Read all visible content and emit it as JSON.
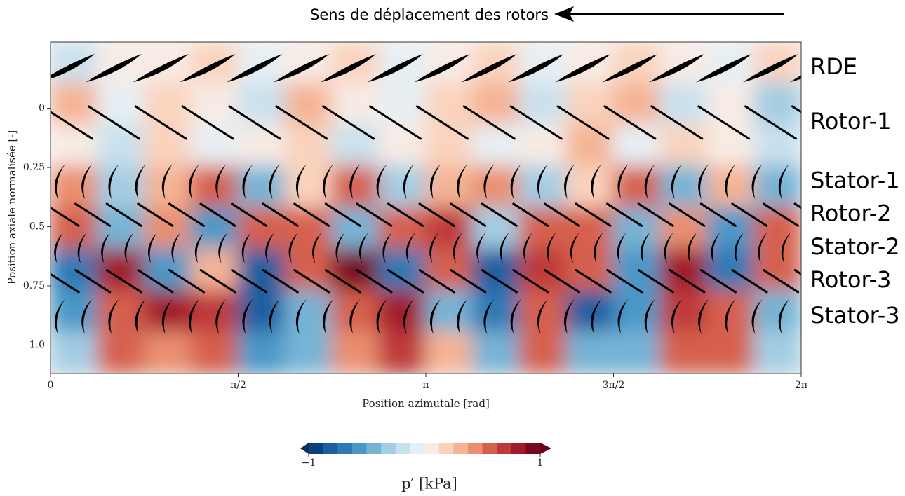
{
  "chart_data": {
    "type": "contour",
    "annotation": "Sens de déplacement des rotors",
    "xlabel": "Position azimutale [rad]",
    "ylabel": "Position axiale normalisée [-]",
    "xlim": [
      0,
      6.2832
    ],
    "xticks": [
      0,
      {
        "value": 1.5708,
        "label": "π/2"
      },
      {
        "value": 3.1416,
        "label": "π"
      },
      {
        "value": 4.7124,
        "label": "3π/2"
      },
      {
        "value": 6.2832,
        "label": "2π"
      }
    ],
    "ylim": [
      -0.28,
      1.12
    ],
    "y_inverted": true,
    "yticks": [
      0,
      0.25,
      0.5,
      0.75,
      {
        "value": 1,
        "label": "1.0"
      }
    ],
    "rows": [
      {
        "name": "RDE",
        "position": -0.17,
        "blades": 16,
        "blade": "airfoil"
      },
      {
        "name": "Rotor-1",
        "position": 0.06,
        "blades": 16,
        "blade": "plate"
      },
      {
        "name": "Stator-1",
        "position": 0.31,
        "blades": 28,
        "blade": "arc"
      },
      {
        "name": "Rotor-2",
        "position": 0.45,
        "blades": 24,
        "blade": "plate"
      },
      {
        "name": "Stator-2",
        "position": 0.59,
        "blades": 32,
        "blade": "arc"
      },
      {
        "name": "Rotor-3",
        "position": 0.73,
        "blades": 24,
        "blade": "plate"
      },
      {
        "name": "Stator-3",
        "position": 0.88,
        "blades": 28,
        "blade": "arc"
      }
    ],
    "field": {
      "values": [
        [
          -0.2,
          0.1,
          0,
          0.2,
          -0.1,
          0.1,
          0.2,
          -0.1,
          0,
          0.2,
          -0.1,
          0.1,
          0.2,
          0,
          -0.1,
          0.2
        ],
        [
          0.3,
          -0.1,
          0.2,
          0.1,
          -0.2,
          0.3,
          0.1,
          -0.1,
          0.2,
          0.3,
          -0.2,
          0.2,
          0.3,
          -0.2,
          0.1,
          -0.3
        ],
        [
          0.1,
          -0.2,
          0.2,
          -0.1,
          0.1,
          0.2,
          -0.2,
          0.1,
          0.2,
          -0.1,
          0.1,
          0.3,
          -0.1,
          0.2,
          0.1,
          -0.2
        ],
        [
          0.4,
          -0.3,
          0.3,
          0.5,
          -0.4,
          0.2,
          0.5,
          -0.3,
          0.3,
          0.4,
          -0.3,
          0.2,
          0.5,
          -0.4,
          0.3,
          -0.5
        ],
        [
          0.6,
          -0.5,
          0.4,
          -0.6,
          0.5,
          0.6,
          -0.4,
          0.5,
          0.7,
          -0.3,
          0.6,
          0.5,
          -0.5,
          0.4,
          -0.6,
          0.5
        ],
        [
          -0.7,
          0.8,
          -0.6,
          0.3,
          -0.8,
          0.6,
          0.9,
          -0.7,
          0.6,
          -0.8,
          0.7,
          0.5,
          -0.6,
          0.8,
          -0.7,
          0.6
        ],
        [
          -0.6,
          0.5,
          0.8,
          0.7,
          -0.8,
          -0.5,
          0.6,
          0.8,
          -0.4,
          -0.7,
          0.5,
          -0.8,
          -0.6,
          0.7,
          0.6,
          -0.5
        ],
        [
          -0.3,
          0.6,
          0.4,
          0.5,
          -0.6,
          -0.4,
          0.4,
          0.7,
          0.3,
          -0.5,
          0.6,
          -0.5,
          -0.4,
          0.5,
          0.6,
          -0.3
        ]
      ]
    },
    "colorbar": {
      "label": "p′ [kPa]",
      "clim": [
        -1,
        1
      ],
      "ticks": [
        {
          "value": -1,
          "label": "−1"
        },
        1
      ],
      "colors": [
        "#0d3f7a",
        "#1c5fa0",
        "#2f79b5",
        "#4a98c8",
        "#76b4d6",
        "#a3cde3",
        "#c9e1ee",
        "#e6eff4",
        "#f8ebe4",
        "#fad3bd",
        "#f5b394",
        "#ea8f6f",
        "#d6604d",
        "#be3a3a",
        "#a11a2c",
        "#780724"
      ],
      "under_color": "#053061",
      "over_color": "#67001f"
    }
  }
}
